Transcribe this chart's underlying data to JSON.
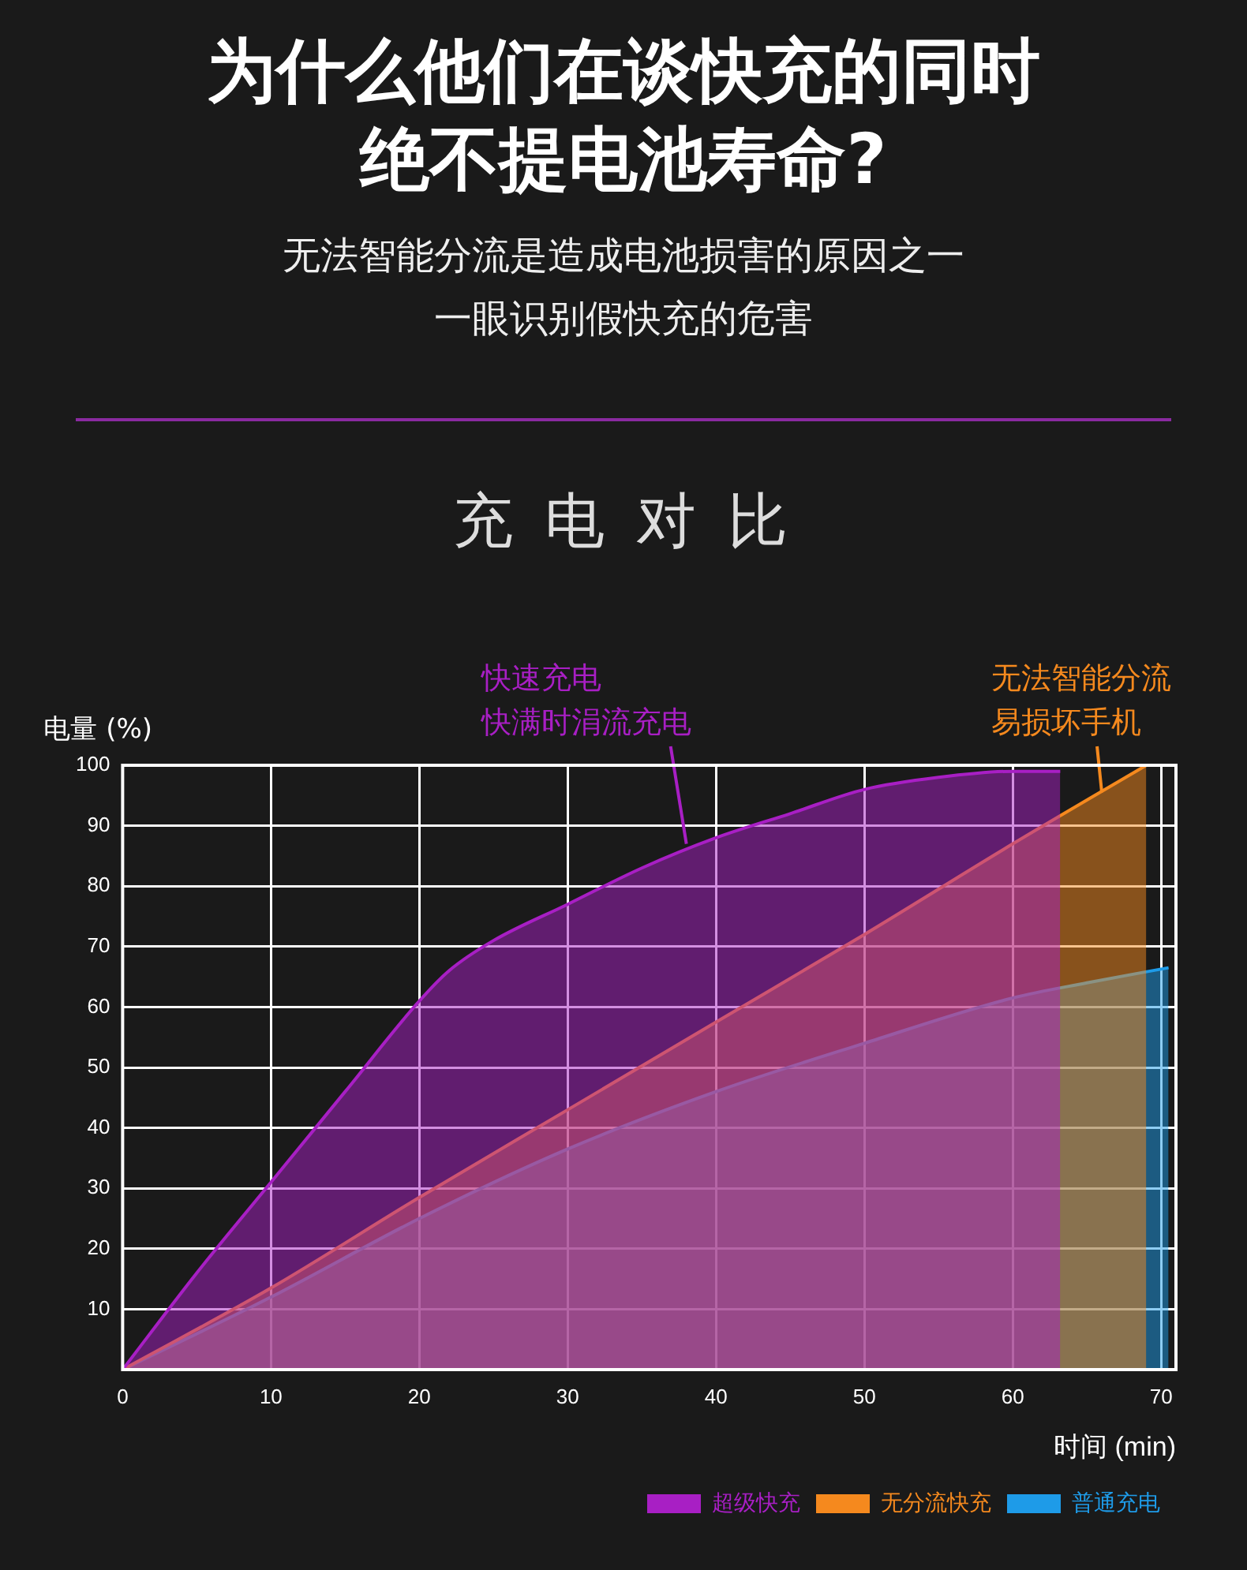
{
  "chart_data": {
    "type": "area",
    "title": "为什么他们在谈快充的同时绝不提电池寿命?",
    "subtitle": "无法智能分流是造成电池损害的原因之一一眼识别假快充的危害",
    "xlabel": "时间 (min)",
    "ylabel": "电量 (%)",
    "annotations": [
      "充 电 对 比",
      "快速充电",
      {
        "text": "快满时涓流充电",
        "x": 38,
        "y": 87
      },
      "无法智能分流",
      {
        "text": "易损坏手机",
        "x": 66,
        "y": 95.5
      }
    ],
    "series": [
      {
        "name": "超级快充",
        "color": "#a81fc4",
        "x": [
          0,
          5,
          10,
          15,
          20,
          22,
          25,
          30,
          35,
          40,
          45,
          50,
          55,
          60,
          63.2
        ],
        "values": [
          0,
          16,
          31,
          46,
          61,
          66,
          71,
          77,
          83,
          88,
          92,
          96,
          98,
          99,
          99
        ]
      },
      {
        "name": "无分流快充",
        "color": "#f5891e",
        "x": [
          0,
          10,
          20,
          30,
          40,
          50,
          60,
          69
        ],
        "values": [
          0,
          13.5,
          28.5,
          43,
          57.5,
          72,
          87,
          100
        ]
      },
      {
        "name": "普通充电",
        "color": "#1e9be8",
        "x": [
          0,
          10,
          20,
          30,
          40,
          50,
          60,
          65,
          70.5
        ],
        "values": [
          0,
          12,
          25,
          36.5,
          46,
          54,
          61.5,
          64,
          66.5
        ]
      }
    ],
    "xlim": [
      0,
      71
    ],
    "xticks": [
      0,
      10,
      20,
      30,
      40,
      50,
      60,
      70
    ],
    "ylim": [
      0,
      100
    ],
    "yticks": [
      10,
      20,
      30,
      40,
      50,
      60,
      70,
      80,
      90,
      100
    ],
    "grid": true,
    "legend": "bottom right",
    "marker": "none",
    "line_style": "solid"
  }
}
